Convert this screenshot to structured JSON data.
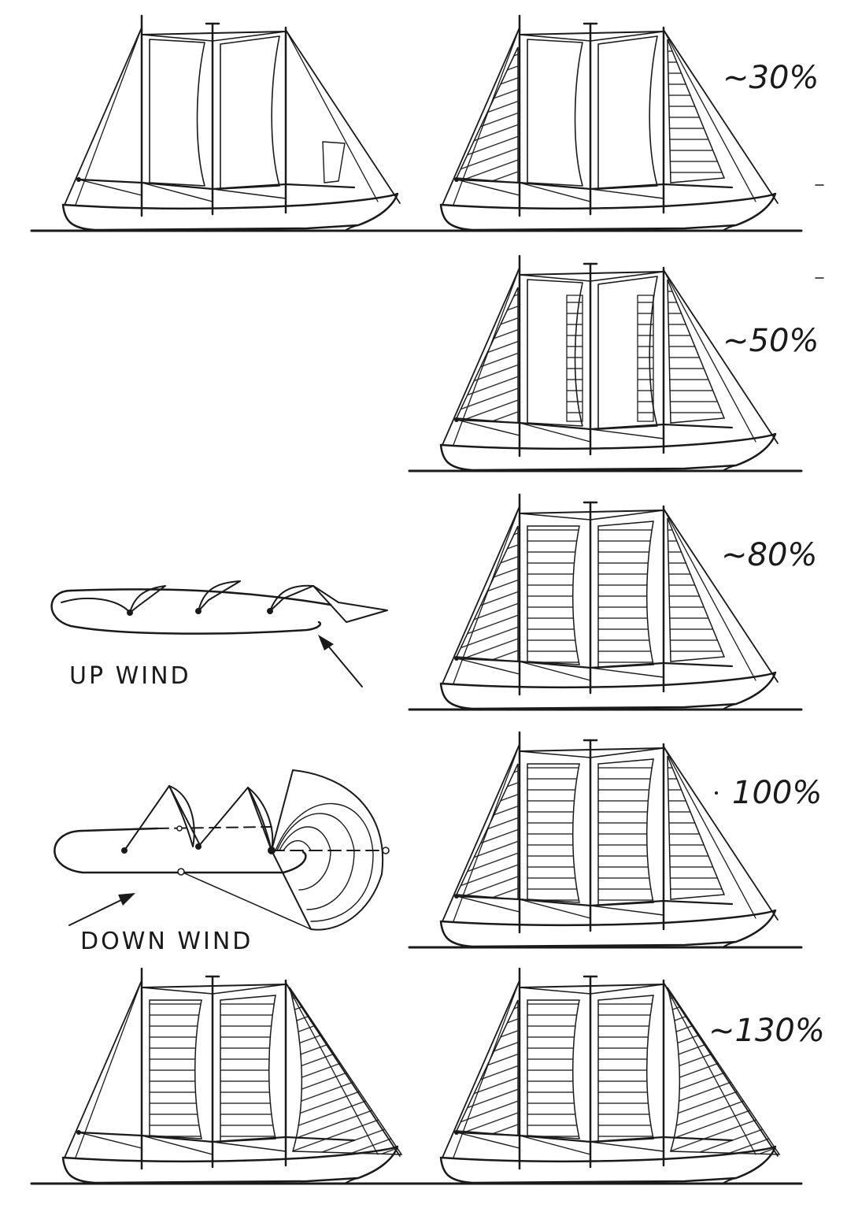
{
  "panels": [
    {
      "id": "reef-30",
      "label": "~30%"
    },
    {
      "id": "reef-50",
      "label": "~50%"
    },
    {
      "id": "reef-80",
      "label": "~80%"
    },
    {
      "id": "reef-100",
      "label": "100%"
    },
    {
      "id": "reef-130",
      "label": "~130%"
    }
  ],
  "plans": {
    "upwind": {
      "label": "UP WIND"
    },
    "downwind": {
      "label": "DOWN WIND"
    }
  },
  "colors": {
    "ink": "#1a1a1a",
    "paper": "#ffffff"
  }
}
